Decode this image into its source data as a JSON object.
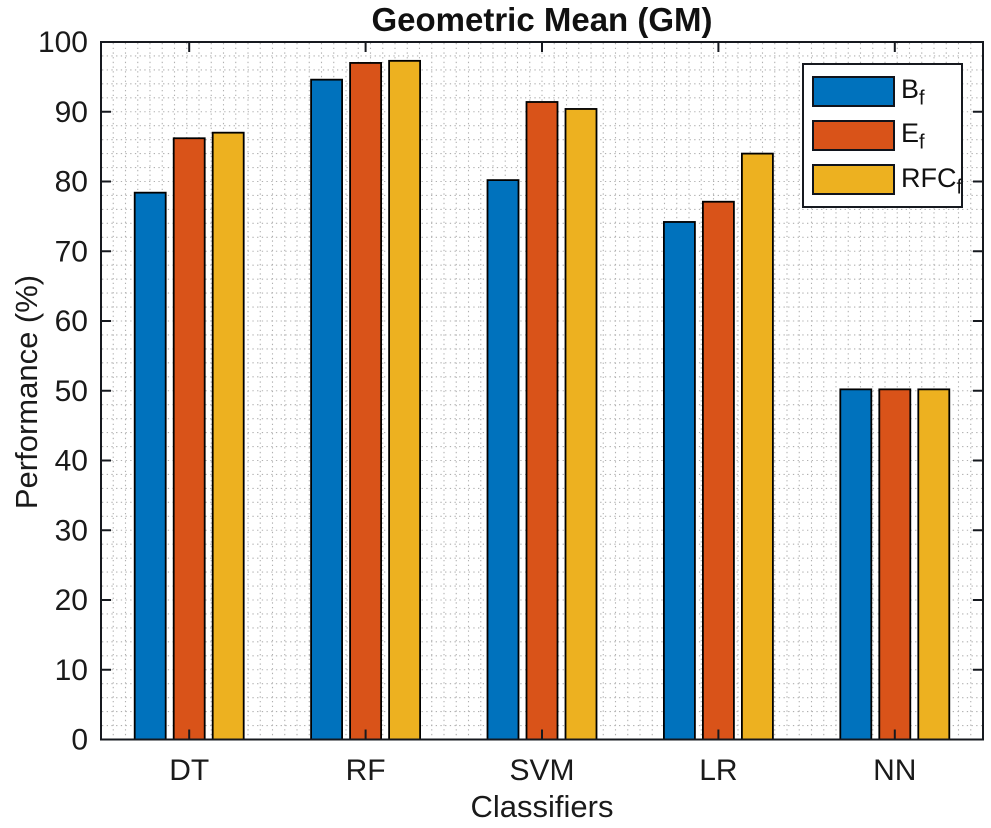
{
  "figure": {
    "title": "Geometric Mean (GM)",
    "xlabel": "Classifiers",
    "ylabel": "Performance (%)"
  },
  "chart_data": {
    "type": "bar",
    "title": "Geometric Mean (GM)",
    "xlabel": "Classifiers",
    "ylabel": "Performance (%)",
    "categories": [
      "DT",
      "RF",
      "SVM",
      "LR",
      "NN"
    ],
    "series": [
      {
        "name": "B",
        "subscript": "f",
        "color": "#0072BD",
        "values": [
          78.4,
          94.6,
          80.2,
          74.2,
          50.2
        ]
      },
      {
        "name": "E",
        "subscript": "f",
        "color": "#D95319",
        "values": [
          86.2,
          97.0,
          91.4,
          77.1,
          50.2
        ]
      },
      {
        "name": "RFC",
        "subscript": "f",
        "color": "#EDB120",
        "values": [
          87.0,
          97.3,
          90.4,
          84.0,
          50.2
        ]
      }
    ],
    "ylim": [
      0,
      100
    ],
    "yticks": [
      0,
      10,
      20,
      30,
      40,
      50,
      60,
      70,
      80,
      90,
      100
    ],
    "grid": "minor-dotted",
    "grid_on": true,
    "legend_position": "top-right",
    "bar_edge_color": "#000000"
  },
  "colors": {
    "axis": "#16191f",
    "text": "#1a1a1a",
    "grid_dot": "#b0b0b0",
    "background": "#ffffff"
  }
}
